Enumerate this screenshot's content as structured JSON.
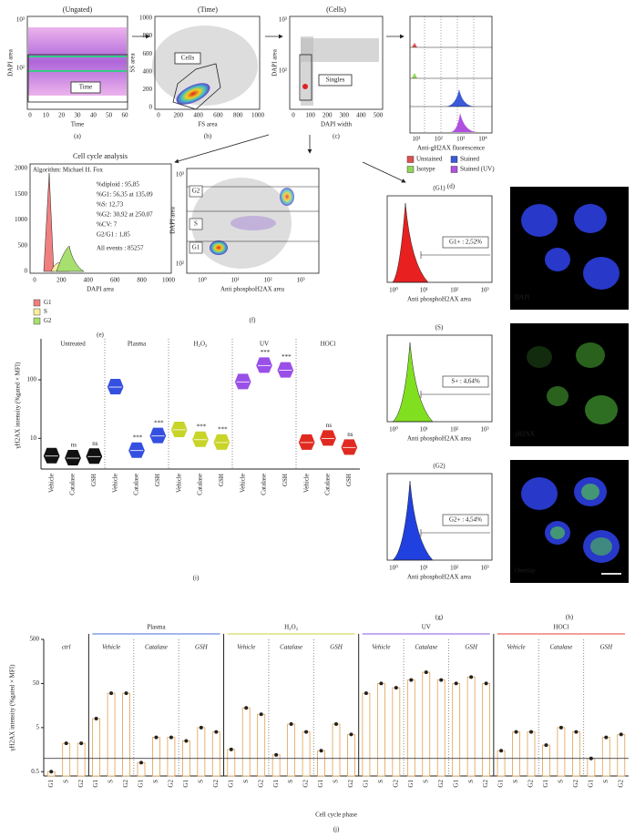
{
  "panel_a": {
    "title": "(Ungated)",
    "ylabel": "DAPI area",
    "xlabel": "Time",
    "gate": "Time",
    "yticks": [
      "10³",
      "10²"
    ],
    "xticks": [
      "0",
      "10",
      "20",
      "30",
      "40",
      "50",
      "60"
    ],
    "label": "(a)"
  },
  "panel_b": {
    "title": "(Time)",
    "ylabel": "SS area",
    "xlabel": "FS area",
    "gate": "Cells",
    "yticks": [
      "1000",
      "800",
      "600",
      "400",
      "200",
      "0"
    ],
    "xticks": [
      "0",
      "200",
      "400",
      "600",
      "800",
      "1000"
    ],
    "label": "(b)"
  },
  "panel_c": {
    "title": "(Cells)",
    "ylabel": "DAPI area",
    "xlabel": "DAPI width",
    "gate": "Singles",
    "yticks": [
      "10³",
      "10²"
    ],
    "xticks": [
      "0",
      "100",
      "200",
      "300",
      "400",
      "500"
    ],
    "label": "(c)"
  },
  "panel_d": {
    "xlabel": "Anti-gH2AX fluorescence",
    "xticks": [
      "10¹",
      "10²",
      "10³",
      "10⁴"
    ],
    "legend": [
      {
        "name": "Unstained",
        "color": "#e05050"
      },
      {
        "name": "Stained",
        "color": "#3a5ad8"
      },
      {
        "name": "Isotype",
        "color": "#8ed858"
      },
      {
        "name": "Stained (UV)",
        "color": "#b050e0"
      }
    ],
    "label": "(d)"
  },
  "panel_e": {
    "title": "Cell cycle analysis",
    "algorithm": "Algorithm: Michael H. Fox",
    "lines": [
      "%diploid : 95,85",
      "%G1: 56,35 at 135,09",
      "%S: 12,73",
      "%G2: 30,92 at 250,07",
      "%CV: 7",
      "G2/G1 : 1,85",
      "All events : 85257"
    ],
    "yticks": [
      "2000",
      "1500",
      "1000",
      "500",
      "0"
    ],
    "xticks": [
      "0",
      "200",
      "400",
      "600",
      "800",
      "1000"
    ],
    "xlabel": "DAPI area",
    "legend": [
      {
        "name": "G1",
        "color": "#f08080"
      },
      {
        "name": "S",
        "color": "#f6eea0"
      },
      {
        "name": "G2",
        "color": "#a8e070"
      }
    ],
    "label": "(e)"
  },
  "panel_f": {
    "ylabel": "DAPI area",
    "xlabel": "Anti phosphoH2AX area",
    "gates": [
      "G2",
      "S",
      "G1"
    ],
    "yticks": [
      "10³",
      "10²"
    ],
    "xticks": [
      "10⁰",
      "10¹",
      "10²",
      "10³"
    ],
    "label": "(f)"
  },
  "panel_g": {
    "histograms": [
      {
        "title": "(G1)",
        "gate": "G1+ : 2,52%",
        "color": "#e82020"
      },
      {
        "title": "(S)",
        "gate": "S+ : 4,64%",
        "color": "#80e020"
      },
      {
        "title": "(G2)",
        "gate": "G2+ : 4,54%",
        "color": "#2040e0"
      }
    ],
    "xticks": [
      "10⁰",
      "10¹",
      "10²",
      "10³"
    ],
    "xlabel": "Anti phosphoH2AX area",
    "label": "(g)"
  },
  "panel_h": {
    "images": [
      "DAPI",
      "γH2AX",
      "Overlay"
    ],
    "label": "(h)"
  },
  "chart_data": [
    {
      "type": "violin",
      "label": "(i)",
      "ylabel": "γH2AX intensity (%gated × MFI)",
      "log": true,
      "ylim": [
        3,
        500
      ],
      "yticks": [
        10,
        100
      ],
      "groups": [
        {
          "name": "Untreated",
          "color": "#111111",
          "categories": [
            "Vehicle",
            "Catalase",
            "GSH"
          ],
          "values": [
            5,
            4.6,
            4.9
          ],
          "annotations": [
            null,
            "ns",
            "ns"
          ]
        },
        {
          "name": "Plasma",
          "color": "#3550e0",
          "categories": [
            "Vehicle",
            "Catalase",
            "GSH"
          ],
          "values": [
            75,
            6.2,
            11
          ],
          "annotations": [
            null,
            "***",
            "***"
          ]
        },
        {
          "name": "H₂O₂",
          "color": "#c8d428",
          "categories": [
            "Vehicle",
            "Catalase",
            "GSH"
          ],
          "values": [
            14,
            9.5,
            8.5
          ],
          "annotations": [
            null,
            "***",
            "***"
          ]
        },
        {
          "name": "UV",
          "color": "#9a50e8",
          "categories": [
            "Vehicle",
            "Catalase",
            "GSH"
          ],
          "values": [
            92,
            175,
            145
          ],
          "annotations": [
            null,
            "***",
            "***"
          ]
        },
        {
          "name": "HOCl",
          "color": "#e02a20",
          "categories": [
            "Vehicle",
            "Catalase",
            "GSH"
          ],
          "values": [
            8.5,
            10,
            7
          ],
          "annotations": [
            null,
            "ns",
            "ns"
          ]
        }
      ]
    },
    {
      "type": "bar",
      "label": "(j)",
      "ylabel": "γH2AX intensity (%gated × MFI)",
      "xlabel": "Cell cycle phase",
      "log": true,
      "ylim": [
        0.4,
        500
      ],
      "yticks": [
        0.5,
        5,
        50,
        500
      ],
      "hline": 1,
      "bar_color": "#e0a050",
      "phases": [
        "G1",
        "S",
        "G2"
      ],
      "groups": [
        {
          "name": null,
          "subgroups": [
            {
              "name": "ctrl",
              "values": [
                0.5,
                2.2,
                2.2
              ]
            }
          ]
        },
        {
          "name": "Plasma",
          "color": "#4a6fd8",
          "subgroups": [
            {
              "name": "Vehicle",
              "values": [
                8,
                30,
                30
              ]
            },
            {
              "name": "Catalase",
              "values": [
                0.8,
                3,
                3
              ]
            },
            {
              "name": "GSH",
              "values": [
                2.5,
                5,
                4
              ]
            }
          ]
        },
        {
          "name": "H₂O₂",
          "color": "#c8d23c",
          "subgroups": [
            {
              "name": "Vehicle",
              "values": [
                1.6,
                14,
                10
              ]
            },
            {
              "name": "Catalase",
              "values": [
                1.2,
                6,
                4
              ]
            },
            {
              "name": "GSH",
              "values": [
                1.5,
                6,
                3.5
              ]
            }
          ]
        },
        {
          "name": "UV",
          "color": "#8a5ad8",
          "subgroups": [
            {
              "name": "Vehicle",
              "values": [
                30,
                50,
                40
              ]
            },
            {
              "name": "Catalase",
              "values": [
                60,
                90,
                60
              ]
            },
            {
              "name": "GSH",
              "values": [
                50,
                70,
                50
              ]
            }
          ]
        },
        {
          "name": "HOCl",
          "color": "#e04030",
          "subgroups": [
            {
              "name": "Vehicle",
              "values": [
                1.5,
                4,
                4
              ]
            },
            {
              "name": "Catalase",
              "values": [
                2,
                5,
                4
              ]
            },
            {
              "name": "GSH",
              "values": [
                1,
                3,
                3.5
              ]
            }
          ]
        }
      ]
    }
  ]
}
